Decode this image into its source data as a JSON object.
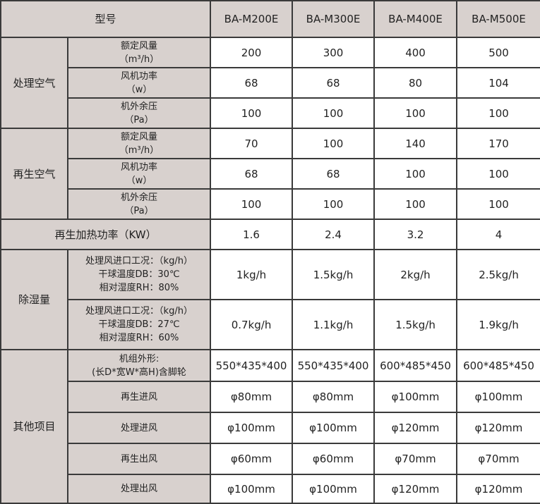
{
  "header": {
    "label": "型号",
    "models": [
      "BA-M200E",
      "BA-M300E",
      "BA-M400E",
      "BA-M500E"
    ]
  },
  "groups": [
    {
      "name": "处理空气",
      "rows": [
        {
          "label": [
            "额定风量",
            "（m³/h）"
          ],
          "values": [
            "200",
            "300",
            "400",
            "500"
          ]
        },
        {
          "label": [
            "风机功率",
            "（w）"
          ],
          "values": [
            "68",
            "68",
            "80",
            "104"
          ]
        },
        {
          "label": [
            "机外余压",
            "（Pa）"
          ],
          "values": [
            "100",
            "100",
            "100",
            "100"
          ]
        }
      ]
    },
    {
      "name": "再生空气",
      "rows": [
        {
          "label": [
            "额定风量",
            "（m³/h）"
          ],
          "values": [
            "70",
            "100",
            "140",
            "170"
          ]
        },
        {
          "label": [
            "风机功率",
            "（w）"
          ],
          "values": [
            "68",
            "68",
            "100",
            "100"
          ]
        },
        {
          "label": [
            "机外余压",
            "（Pa）"
          ],
          "values": [
            "100",
            "100",
            "100",
            "100"
          ]
        }
      ]
    },
    {
      "name": "再生加热功率（KW）",
      "full": true,
      "rows": [
        {
          "label": [],
          "values": [
            "1.6",
            "2.4",
            "3.2",
            "4"
          ]
        }
      ]
    },
    {
      "name": "除湿量",
      "rows": [
        {
          "label": [
            "处理风进口工况：（kg/h）",
            "干球温度DB：30℃",
            "相对湿度RH：80%"
          ],
          "values": [
            "1kg/h",
            "1.5kg/h",
            "2kg/h",
            "2.5kg/h"
          ]
        },
        {
          "label": [
            "处理风进口工况：（kg/h）",
            "干球温度DB：27℃",
            "相对湿度RH：60%"
          ],
          "values": [
            "0.7kg/h",
            "1.1kg/h",
            "1.5kg/h",
            "1.9kg/h"
          ]
        }
      ]
    },
    {
      "name": "其他项目",
      "rows": [
        {
          "label": [
            "机组外形:",
            "(长D*宽W*高H)含脚轮"
          ],
          "values": [
            "550*435*400",
            "550*435*400",
            "600*485*450",
            "600*485*450"
          ]
        },
        {
          "label": [
            "再生进风"
          ],
          "values": [
            "φ80mm",
            "φ80mm",
            "φ100mm",
            "φ100mm"
          ]
        },
        {
          "label": [
            "处理进风"
          ],
          "values": [
            "φ100mm",
            "φ100mm",
            "φ120mm",
            "φ120mm"
          ]
        },
        {
          "label": [
            "再生出风"
          ],
          "values": [
            "φ60mm",
            "φ60mm",
            "φ70mm",
            "φ70mm"
          ]
        },
        {
          "label": [
            "处理出风"
          ],
          "values": [
            "φ100mm",
            "φ100mm",
            "φ120mm",
            "φ120mm"
          ]
        }
      ]
    }
  ]
}
